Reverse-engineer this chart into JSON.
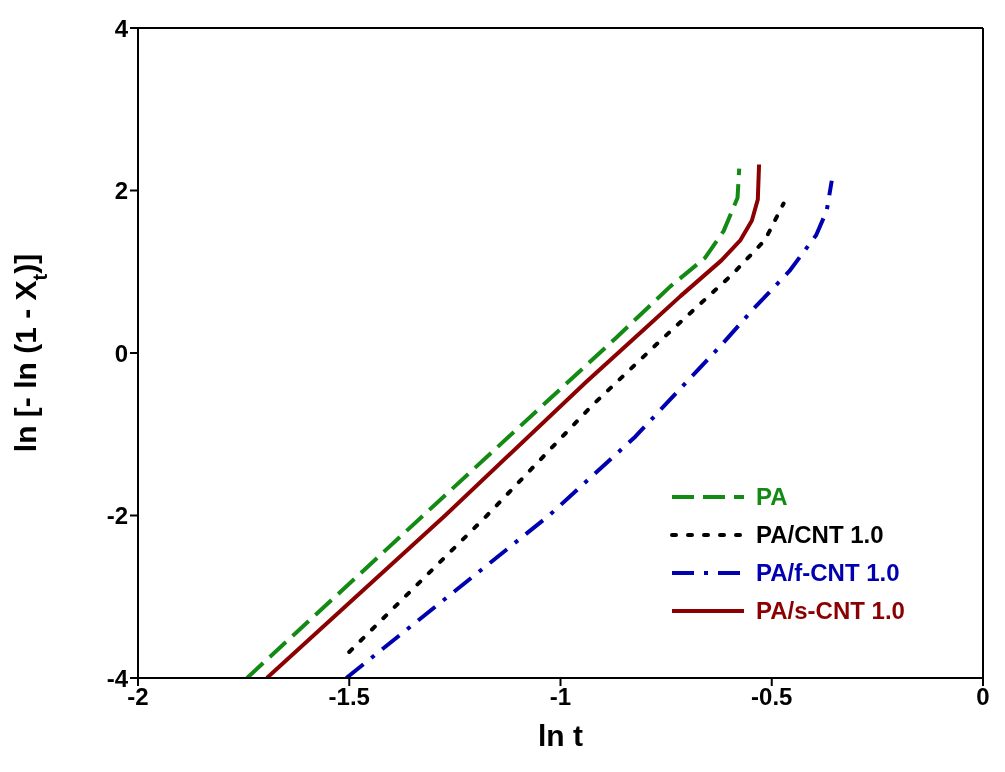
{
  "chart_data": {
    "type": "line",
    "xlabel": "ln t",
    "ylabel": "ln [- ln (1 - X$_{t}$)]",
    "xlim": [
      -2,
      0
    ],
    "xticks": [
      -2,
      -1.5,
      -1,
      -0.5,
      0
    ],
    "ylim": [
      -4,
      4
    ],
    "yticks": [
      -4,
      -2,
      0,
      2,
      4
    ],
    "grid": false,
    "legend": "bottom right",
    "marker": "none",
    "series": [
      {
        "name": "PA",
        "color": "#138a13",
        "line_style": "dashed",
        "x": [
          -1.742,
          -1.325,
          -0.872,
          -0.74,
          -0.658,
          -0.614,
          -0.581,
          -0.577
        ],
        "values": [
          -4,
          -2,
          0.17,
          0.82,
          1.17,
          1.5,
          1.91,
          2.27
        ]
      },
      {
        "name": "PA/CNT 1.0",
        "color": "#000000",
        "line_style": "dotted",
        "x": [
          -1.5,
          -1.174,
          -0.926,
          -0.76,
          -0.595,
          -0.516,
          -0.472
        ],
        "values": [
          -3.68,
          -2,
          -0.65,
          0.17,
          0.96,
          1.39,
          1.84
        ]
      },
      {
        "name": "PA/f-CNT 1.0",
        "color": "#0000b0",
        "line_style": "dashdot",
        "x": [
          -1.507,
          -1.027,
          -0.823,
          -0.619,
          -0.542,
          -0.458,
          -0.395,
          -0.37,
          -0.358
        ],
        "values": [
          -4,
          -2,
          -1.03,
          0.1,
          0.55,
          1.01,
          1.45,
          1.75,
          2.12
        ]
      },
      {
        "name": "PA/s-CNT 1.0",
        "color": "#8b0000",
        "line_style": "solid",
        "x": [
          -1.695,
          -1.273,
          -0.94,
          -0.798,
          -0.716,
          -0.619,
          -0.574,
          -0.547,
          -0.533,
          -0.53
        ],
        "values": [
          -4,
          -2,
          -0.36,
          0.31,
          0.7,
          1.14,
          1.39,
          1.63,
          1.89,
          2.32
        ]
      }
    ]
  }
}
